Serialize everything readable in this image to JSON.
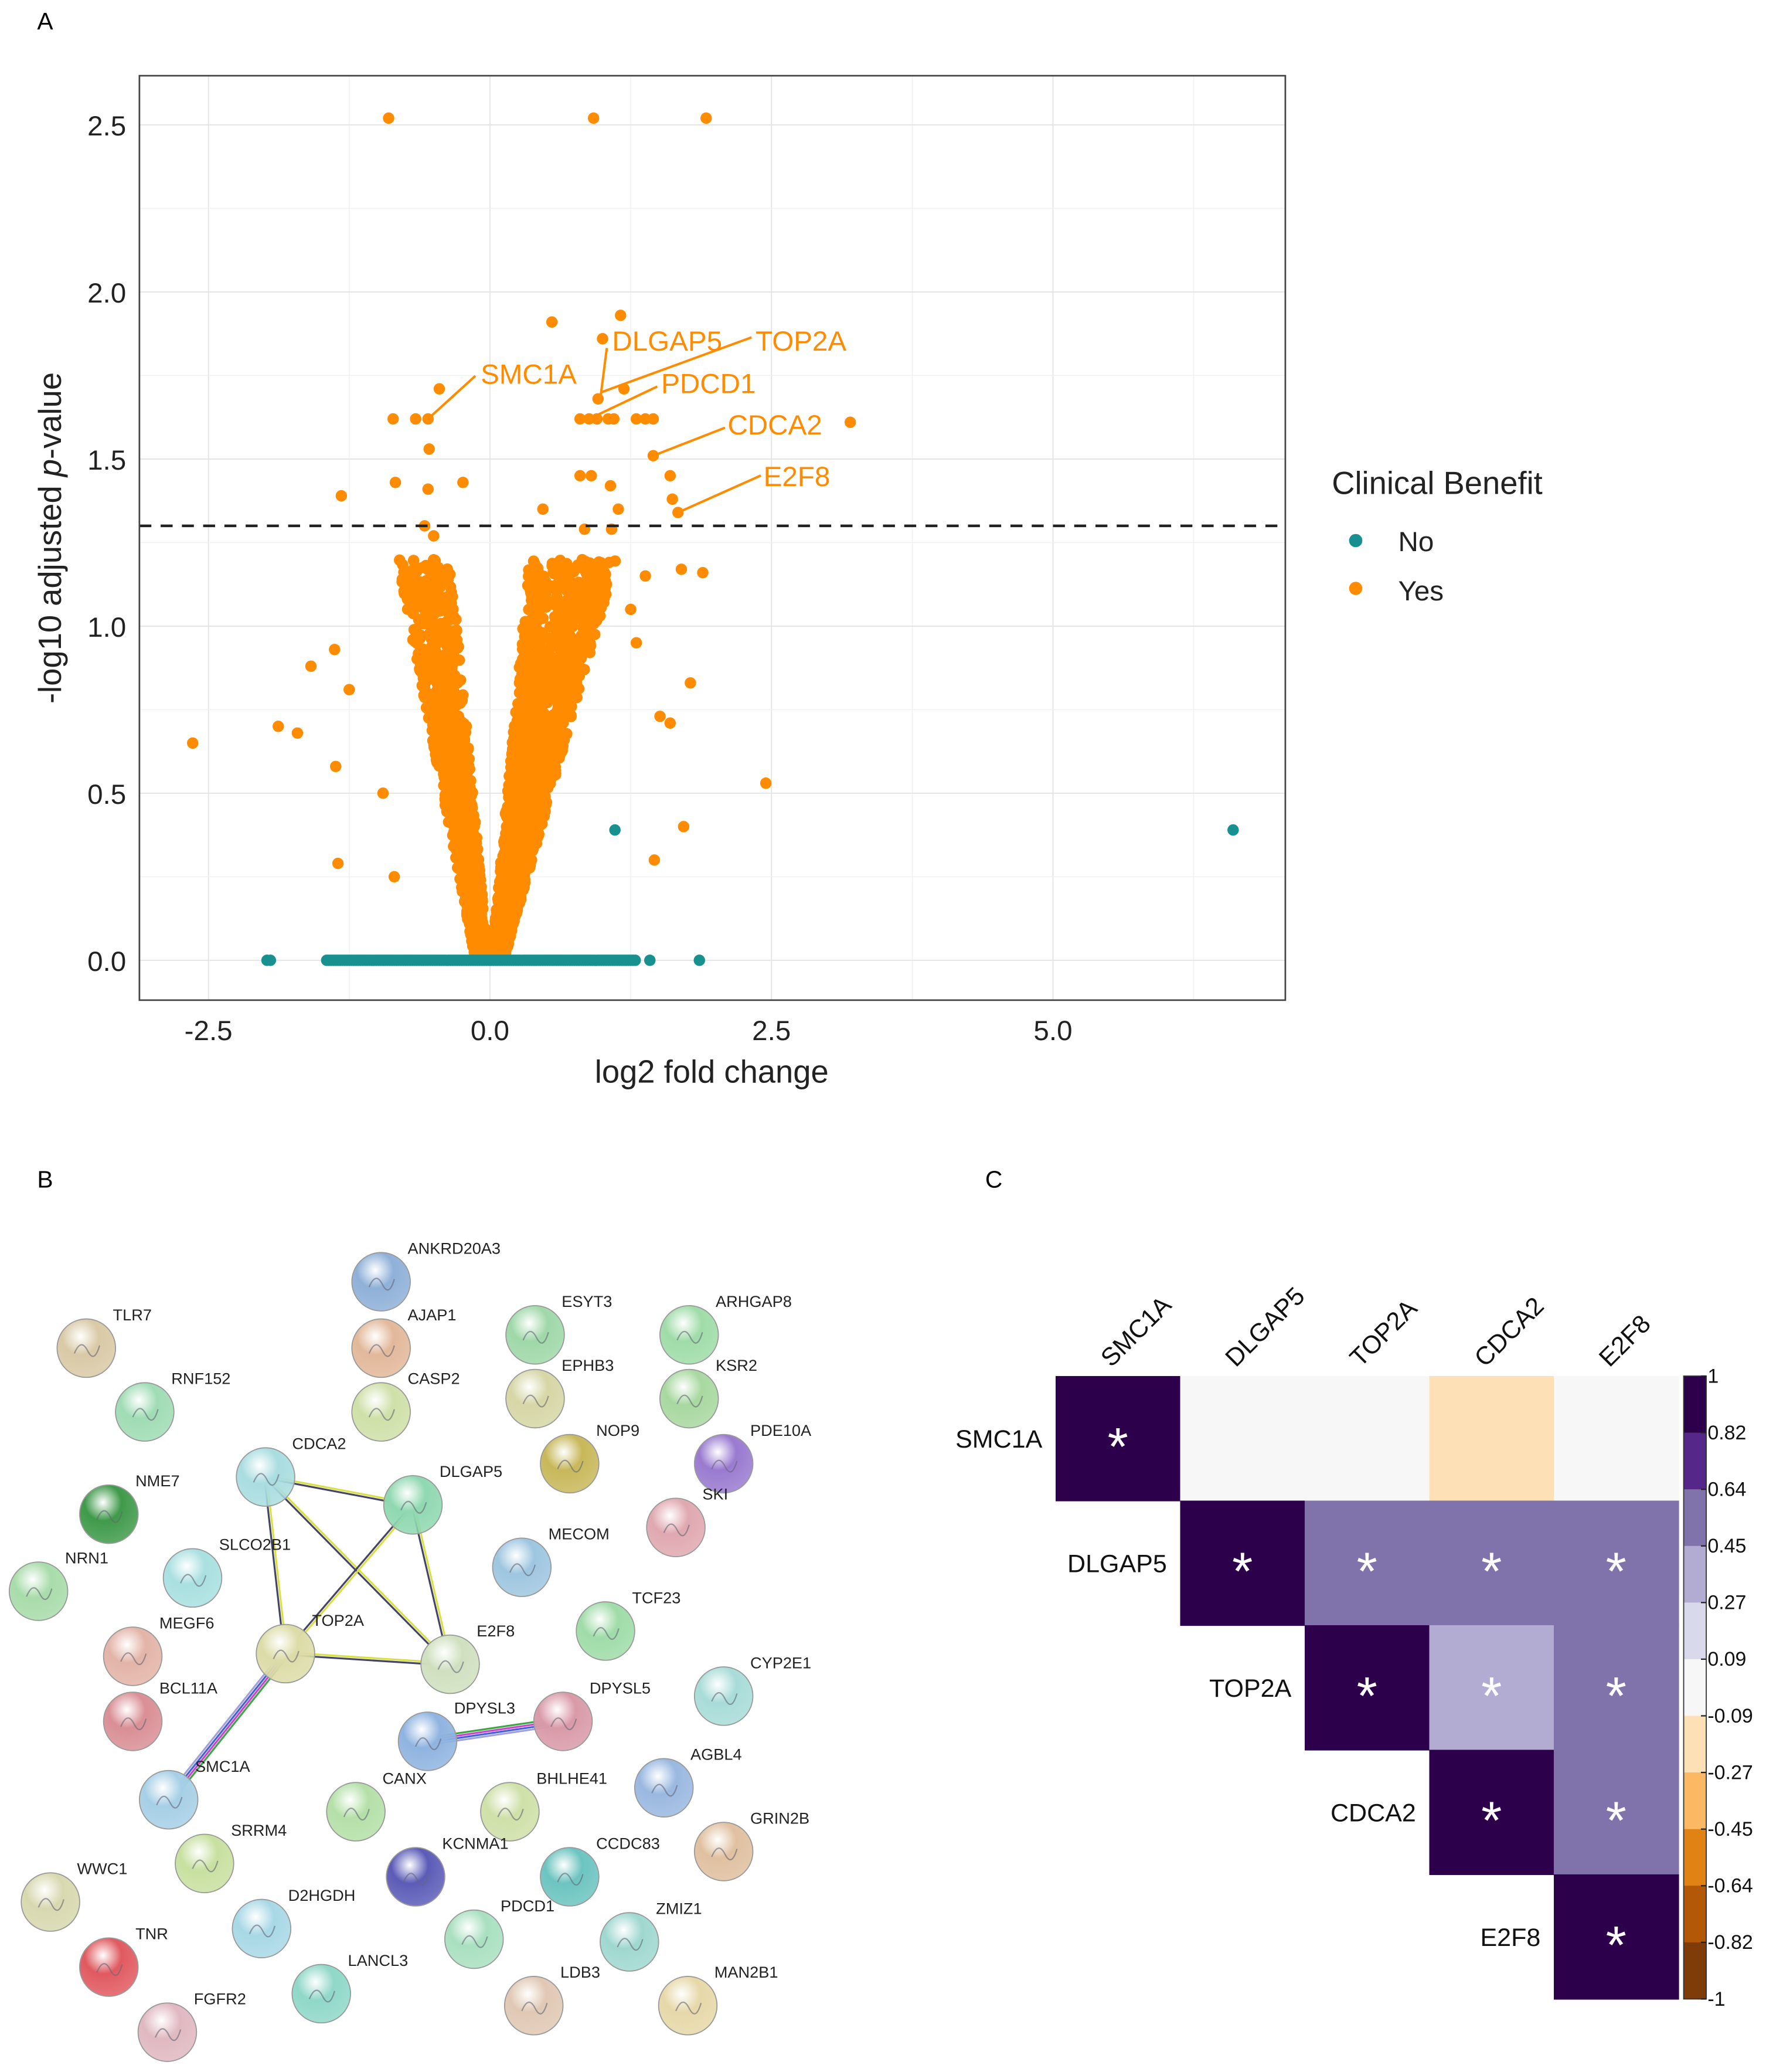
{
  "panels": {
    "a": "A",
    "b": "B",
    "c": "C"
  },
  "chart_data": [
    {
      "type": "scatter",
      "title": "",
      "xlabel": "log2 fold change",
      "ylabel_parts": [
        "-log10 adjusted ",
        "p",
        "-value"
      ],
      "xlim": [
        -3.1,
        7.05
      ],
      "ylim": [
        -0.12,
        2.65
      ],
      "xticks": [
        {
          "v": -2.5,
          "label": "-2.5"
        },
        {
          "v": 0,
          "label": "0.0"
        },
        {
          "v": 2.5,
          "label": "2.5"
        },
        {
          "v": 5,
          "label": "5.0"
        }
      ],
      "yticks": [
        {
          "v": 0,
          "label": "0.0"
        },
        {
          "v": 0.5,
          "label": "0.5"
        },
        {
          "v": 1,
          "label": "1.0"
        },
        {
          "v": 1.5,
          "label": "1.5"
        },
        {
          "v": 2,
          "label": "2.0"
        },
        {
          "v": 2.5,
          "label": "2.5"
        }
      ],
      "grid": true,
      "threshold_line": {
        "y": 1.3,
        "style": "dashed"
      },
      "legend": {
        "title": "Clinical Benefit",
        "placement": "right",
        "entries": [
          {
            "label": "No",
            "color": "#17908f"
          },
          {
            "label": "Yes",
            "color": "#ff8c00"
          }
        ]
      },
      "series": [
        {
          "name": "Yes",
          "color": "#ff8c00",
          "points": [
            [
              -0.9,
              2.52
            ],
            [
              0.92,
              2.52
            ],
            [
              1.92,
              2.52
            ],
            [
              0.55,
              1.91
            ],
            [
              1.16,
              1.93
            ],
            [
              1.0,
              1.86
            ],
            [
              -0.45,
              1.71
            ],
            [
              1.19,
              1.71
            ],
            [
              0.96,
              1.68
            ],
            [
              -0.86,
              1.62
            ],
            [
              -0.66,
              1.62
            ],
            [
              -0.55,
              1.62
            ],
            [
              0.8,
              1.62
            ],
            [
              0.88,
              1.62
            ],
            [
              0.95,
              1.62
            ],
            [
              1.05,
              1.62
            ],
            [
              1.1,
              1.62
            ],
            [
              1.3,
              1.62
            ],
            [
              1.38,
              1.62
            ],
            [
              1.45,
              1.62
            ],
            [
              3.2,
              1.61
            ],
            [
              -0.54,
              1.53
            ],
            [
              1.45,
              1.51
            ],
            [
              -0.84,
              1.43
            ],
            [
              -0.55,
              1.41
            ],
            [
              -0.24,
              1.43
            ],
            [
              -1.32,
              1.39
            ],
            [
              0.47,
              1.35
            ],
            [
              0.8,
              1.45
            ],
            [
              0.9,
              1.45
            ],
            [
              1.07,
              1.42
            ],
            [
              1.6,
              1.45
            ],
            [
              1.62,
              1.38
            ],
            [
              1.14,
              1.35
            ],
            [
              1.67,
              1.34
            ],
            [
              0.84,
              1.29
            ],
            [
              1.08,
              1.29
            ],
            [
              -0.58,
              1.3
            ],
            [
              -0.5,
              1.27
            ],
            [
              1.89,
              1.16
            ],
            [
              1.7,
              1.17
            ],
            [
              1.38,
              1.15
            ],
            [
              -2.64,
              0.65
            ],
            [
              -1.59,
              0.88
            ],
            [
              -1.38,
              0.93
            ],
            [
              -1.25,
              0.81
            ],
            [
              -1.88,
              0.7
            ],
            [
              -1.71,
              0.68
            ],
            [
              -1.37,
              0.58
            ],
            [
              -1.35,
              0.29
            ],
            [
              2.45,
              0.53
            ],
            [
              1.72,
              0.4
            ],
            [
              1.78,
              0.83
            ],
            [
              1.46,
              0.3
            ],
            [
              1.51,
              0.73
            ],
            [
              1.6,
              0.71
            ],
            [
              -0.95,
              0.5
            ],
            [
              -0.85,
              0.25
            ],
            [
              1.3,
              0.95
            ],
            [
              1.25,
              1.05
            ]
          ],
          "bulk_note": "dense V-shaped cloud between log2FC -0.6 and 1.4, -log10 adj p 0 to 1.18"
        },
        {
          "name": "No",
          "color": "#17908f",
          "points": [
            [
              -1.98,
              0
            ],
            [
              -1.95,
              0
            ],
            [
              1.42,
              0
            ],
            [
              1.86,
              0
            ],
            [
              1.11,
              0.39
            ],
            [
              6.6,
              0.39
            ]
          ],
          "baseline_range": [
            -1.45,
            1.3
          ]
        }
      ],
      "annotations": [
        {
          "label": "SMC1A",
          "point": [
            -0.55,
            1.62
          ]
        },
        {
          "label": "DLGAP5",
          "point": [
            0.98,
            1.68
          ]
        },
        {
          "label": "TOP2A",
          "point": [
            0.99,
            1.7
          ]
        },
        {
          "label": "PDCD1",
          "point": [
            0.88,
            1.62
          ]
        },
        {
          "label": "CDCA2",
          "point": [
            1.45,
            1.51
          ]
        },
        {
          "label": "E2F8",
          "point": [
            1.67,
            1.34
          ]
        }
      ]
    },
    {
      "type": "heatmap",
      "title": "",
      "rows": [
        "SMC1A",
        "DLGAP5",
        "TOP2A",
        "CDCA2",
        "E2F8"
      ],
      "cols": [
        "SMC1A",
        "DLGAP5",
        "TOP2A",
        "CDCA2",
        "E2F8"
      ],
      "values": [
        [
          1,
          0.0,
          0.0,
          -0.15,
          0.0
        ],
        [
          null,
          1,
          0.5,
          0.5,
          0.5
        ],
        [
          null,
          null,
          1,
          0.35,
          0.5
        ],
        [
          null,
          null,
          null,
          1,
          0.5
        ],
        [
          null,
          null,
          null,
          null,
          1
        ]
      ],
      "significant": [
        [
          true,
          false,
          false,
          false,
          false
        ],
        [
          null,
          true,
          true,
          true,
          true
        ],
        [
          null,
          null,
          true,
          true,
          true
        ],
        [
          null,
          null,
          null,
          true,
          true
        ],
        [
          null,
          null,
          null,
          null,
          true
        ]
      ],
      "sig_marker": "*",
      "colorbar": {
        "labels": [
          "1",
          "0.82",
          "0.64",
          "0.45",
          "0.27",
          "0.09",
          "-0.09",
          "-0.27",
          "-0.45",
          "-0.64",
          "-0.82",
          "-1"
        ],
        "range": [
          -1,
          1
        ],
        "bins": [
          "#2d004b",
          "#542788",
          "#8073ac",
          "#b2abd2",
          "#d8daeb",
          "#f7f7f7",
          "#fee0b6",
          "#fdb863",
          "#e08214",
          "#b35806",
          "#7f3b08"
        ]
      }
    }
  ],
  "network": {
    "nodes": [
      {
        "name": "ANKRD20A3",
        "color": "#8fb0d8"
      },
      {
        "name": "AJAP1",
        "color": "#e2b89a"
      },
      {
        "name": "CASP2",
        "color": "#cfe0a8"
      },
      {
        "name": "TLR7",
        "color": "#d9c9a6"
      },
      {
        "name": "RNF152",
        "color": "#9fdcb4"
      },
      {
        "name": "NME7",
        "color": "#3f9a4a"
      },
      {
        "name": "NRN1",
        "color": "#a8dcaa"
      },
      {
        "name": "CDCA2",
        "color": "#a9dde0"
      },
      {
        "name": "DLGAP5",
        "color": "#8fd8b0"
      },
      {
        "name": "SLCO2B1",
        "color": "#a9e0e0"
      },
      {
        "name": "MEGF6",
        "color": "#e3b4a8"
      },
      {
        "name": "TOP2A",
        "color": "#dcdca8"
      },
      {
        "name": "E2F8",
        "color": "#cfe0bf"
      },
      {
        "name": "BCL11A",
        "color": "#d98f95"
      },
      {
        "name": "SMC1A",
        "color": "#a6cfe6"
      },
      {
        "name": "ESYT3",
        "color": "#9fd8a8"
      },
      {
        "name": "EPHB3",
        "color": "#d6d6a6"
      },
      {
        "name": "NOP9",
        "color": "#c8b85a"
      },
      {
        "name": "MECOM",
        "color": "#9ec6e0"
      },
      {
        "name": "TCF23",
        "color": "#9fdca8"
      },
      {
        "name": "DPYSL3",
        "color": "#8fb4e0"
      },
      {
        "name": "DPYSL5",
        "color": "#d99aa8"
      },
      {
        "name": "CANX",
        "color": "#b4e0a8"
      },
      {
        "name": "BHLHE41",
        "color": "#cfe0a8"
      },
      {
        "name": "KCNMA1",
        "color": "#5c5cb8"
      },
      {
        "name": "CCDC83",
        "color": "#6cc4c0"
      },
      {
        "name": "PDCD1",
        "color": "#a9e0c0"
      },
      {
        "name": "ZMIZ1",
        "color": "#9fd8d0"
      },
      {
        "name": "LDB3",
        "color": "#e0c8b4"
      },
      {
        "name": "MAN2B1",
        "color": "#e6d8a8"
      },
      {
        "name": "ARHGAP8",
        "color": "#9fdca8"
      },
      {
        "name": "KSR2",
        "color": "#a8d8a0"
      },
      {
        "name": "PDE10A",
        "color": "#9a7ad0"
      },
      {
        "name": "SKI",
        "color": "#e0a8b0"
      },
      {
        "name": "CYP2E1",
        "color": "#a8dcd8"
      },
      {
        "name": "AGBL4",
        "color": "#9ab8e0"
      },
      {
        "name": "GRIN2B",
        "color": "#e0c0a0"
      },
      {
        "name": "SRRM4",
        "color": "#c8e0a0"
      },
      {
        "name": "WWC1",
        "color": "#d8d8b0"
      },
      {
        "name": "D2HGDH",
        "color": "#a8d8e6"
      },
      {
        "name": "TNR",
        "color": "#e05a60"
      },
      {
        "name": "LANCL3",
        "color": "#8fd8c8"
      },
      {
        "name": "FGFR2",
        "color": "#e0b8c0"
      }
    ],
    "edges": [
      [
        "CDCA2",
        "DLGAP5"
      ],
      [
        "CDCA2",
        "TOP2A"
      ],
      [
        "CDCA2",
        "E2F8"
      ],
      [
        "DLGAP5",
        "TOP2A"
      ],
      [
        "DLGAP5",
        "E2F8"
      ],
      [
        "TOP2A",
        "E2F8"
      ],
      [
        "TOP2A",
        "SMC1A"
      ],
      [
        "DPYSL3",
        "DPYSL5"
      ]
    ]
  }
}
